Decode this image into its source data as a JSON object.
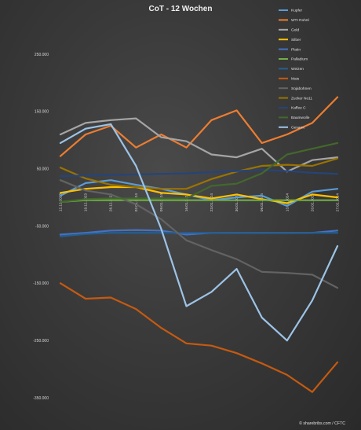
{
  "chart_data": {
    "type": "line",
    "title": "CoT - 12 Wochen",
    "credit": "© sharebribs.com / CFTC",
    "xlabel": "",
    "ylabel": "",
    "ylim": [
      -350000,
      250000
    ],
    "yticks": [
      250000,
      150000,
      50000,
      -50000,
      -150000,
      -250000,
      -350000
    ],
    "ytick_labels": [
      "250.000",
      "150.000",
      "50.000",
      "-50.000",
      "-150.000",
      "-250.000",
      "-350.000"
    ],
    "x": [
      "12.12.2023",
      "19.12.2023",
      "26.12.2023",
      "02.01.2024",
      "09.01.2024",
      "16.01.2024",
      "23.01.2024",
      "30.01.2024",
      "06.02.2024",
      "13.02.2024",
      "20.02.2024",
      "27.02.2024"
    ],
    "grid": false,
    "legend_position": "right",
    "series": [
      {
        "name": "Kupfer",
        "color": "#5b9bd5",
        "values": [
          3000,
          25000,
          30000,
          22000,
          15000,
          5000,
          -5000,
          0,
          3000,
          -15000,
          10000,
          15000
        ]
      },
      {
        "name": "WTI Rohöl",
        "color": "#ed7d31",
        "values": [
          72000,
          110000,
          125000,
          87000,
          110000,
          87000,
          135000,
          152000,
          95000,
          110000,
          130000,
          175000
        ]
      },
      {
        "name": "Gold",
        "color": "#a5a5a5",
        "values": [
          110000,
          130000,
          135000,
          138000,
          105000,
          98000,
          75000,
          70000,
          85000,
          45000,
          65000,
          70000
        ]
      },
      {
        "name": "Silber",
        "color": "#ffc000",
        "values": [
          8000,
          15000,
          18000,
          18000,
          8000,
          5000,
          -2000,
          5000,
          -3000,
          -10000,
          5000,
          0
        ]
      },
      {
        "name": "Platin",
        "color": "#4472c4",
        "values": [
          -65000,
          -62000,
          -58000,
          -57000,
          -58000,
          -65000,
          -62000,
          -62000,
          -62000,
          -62000,
          -62000,
          -58000
        ]
      },
      {
        "name": "Palladium",
        "color": "#70ad47",
        "values": [
          -8000,
          -5000,
          -5000,
          -5000,
          -5000,
          -5000,
          -5000,
          -5000,
          -5000,
          -5000,
          -5000,
          -5000
        ]
      },
      {
        "name": "Weizen",
        "color": "#255e91",
        "values": [
          -68000,
          -64000,
          -62000,
          -62000,
          -62000,
          -62000,
          -62000,
          -62000,
          -62000,
          -62000,
          -62000,
          -62000
        ]
      },
      {
        "name": "Mais",
        "color": "#c55a11",
        "values": [
          -150000,
          -177000,
          -175000,
          -195000,
          -228000,
          -255000,
          -259000,
          -272000,
          -290000,
          -310000,
          -340000,
          -288000
        ]
      },
      {
        "name": "Sojabohnen",
        "color": "#636363",
        "values": [
          30000,
          12000,
          5000,
          -12000,
          -38000,
          -75000,
          -92000,
          -108000,
          -130000,
          -132000,
          -135000,
          -158000
        ]
      },
      {
        "name": "Zucker No11",
        "color": "#997300",
        "values": [
          52000,
          33000,
          22000,
          18000,
          15000,
          15000,
          32000,
          45000,
          55000,
          57000,
          55000,
          68000
        ]
      },
      {
        "name": "Kaffee C",
        "color": "#264478",
        "values": [
          37000,
          38000,
          39000,
          40000,
          41000,
          42000,
          44000,
          46000,
          48000,
          46000,
          43000,
          41000
        ]
      },
      {
        "name": "Baumwolle",
        "color": "#43682b",
        "values": [
          -8000,
          -3000,
          -2000,
          -2000,
          -2000,
          -2000,
          20000,
          24000,
          42000,
          75000,
          85000,
          95000
        ]
      },
      {
        "name": "Gesamt",
        "color": "#9dc3e6",
        "values": [
          95000,
          120000,
          128000,
          55000,
          -55000,
          -190000,
          -165000,
          -125000,
          -210000,
          -250000,
          -180000,
          -85000
        ]
      }
    ]
  }
}
